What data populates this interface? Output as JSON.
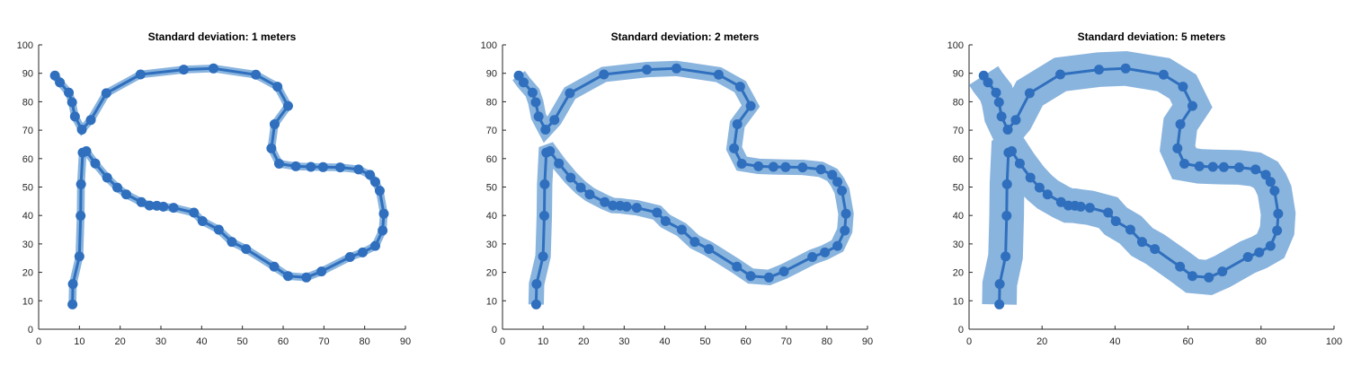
{
  "colors": {
    "line": "#2f6fbd",
    "band": "#89b4de",
    "axis": "#262626"
  },
  "chart_data": [
    {
      "type": "line",
      "title": "Standard deviation: 1 meters",
      "xlim": [
        0,
        90
      ],
      "ylim": [
        0,
        100
      ],
      "xticks": [
        "0",
        "10",
        "20",
        "30",
        "40",
        "50",
        "60",
        "70",
        "80",
        "90"
      ],
      "yticks": [
        "0",
        "10",
        "20",
        "30",
        "40",
        "50",
        "60",
        "70",
        "80",
        "90",
        "100"
      ],
      "band_width_m": 1,
      "x": [
        8.3,
        8.4,
        10.0,
        10.3,
        10.4,
        10.8,
        11.7,
        13.9,
        16.8,
        19.3,
        21.5,
        25.2,
        27.2,
        29.0,
        30.6,
        33.1,
        38.1,
        40.2,
        44.2,
        47.4,
        50.9,
        57.8,
        61.2,
        65.7,
        69.4,
        76.4,
        79.5,
        82.6,
        84.4,
        84.7,
        83.7,
        82.6,
        81.3,
        78.5,
        74.0,
        69.8,
        66.8,
        63.1,
        59.0,
        57.1,
        57.9,
        61.2,
        58.6,
        53.3,
        42.9,
        35.6,
        25.0,
        16.6,
        12.8,
        10.6,
        8.9,
        8.2,
        7.4,
        5.2,
        4.0
      ],
      "y": [
        8.7,
        15.9,
        25.6,
        39.9,
        51.0,
        62.1,
        62.6,
        58.3,
        53.3,
        49.8,
        47.4,
        44.7,
        43.5,
        43.4,
        43.1,
        42.7,
        41.0,
        38.0,
        35.0,
        30.7,
        28.2,
        22.0,
        18.7,
        18.2,
        20.3,
        25.4,
        27.0,
        29.3,
        34.7,
        40.6,
        48.7,
        51.8,
        54.3,
        56.2,
        56.9,
        57.0,
        57.1,
        57.3,
        58.2,
        63.6,
        72.1,
        78.5,
        85.3,
        89.5,
        91.7,
        91.3,
        89.6,
        83.0,
        73.6,
        70.2,
        74.8,
        79.8,
        83.2,
        86.8,
        89.2
      ]
    },
    {
      "type": "line",
      "title": "Standard deviation: 2 meters",
      "xlim": [
        0,
        90
      ],
      "ylim": [
        0,
        100
      ],
      "xticks": [
        "0",
        "10",
        "20",
        "30",
        "40",
        "50",
        "60",
        "70",
        "80",
        "90"
      ],
      "yticks": [
        "0",
        "10",
        "20",
        "30",
        "40",
        "50",
        "60",
        "70",
        "80",
        "90",
        "100"
      ],
      "band_width_m": 2,
      "x": [
        8.3,
        8.4,
        10.0,
        10.3,
        10.4,
        10.8,
        11.7,
        13.9,
        16.8,
        19.3,
        21.5,
        25.2,
        27.2,
        29.0,
        30.6,
        33.1,
        38.1,
        40.2,
        44.2,
        47.4,
        50.9,
        57.8,
        61.2,
        65.7,
        69.4,
        76.4,
        79.5,
        82.6,
        84.4,
        84.7,
        83.7,
        82.6,
        81.3,
        78.5,
        74.0,
        69.8,
        66.8,
        63.1,
        59.0,
        57.1,
        57.9,
        61.2,
        58.6,
        53.3,
        42.9,
        35.6,
        25.0,
        16.6,
        12.8,
        10.6,
        8.9,
        8.2,
        7.4,
        5.2,
        4.0
      ],
      "y": [
        8.7,
        15.9,
        25.6,
        39.9,
        51.0,
        62.1,
        62.6,
        58.3,
        53.3,
        49.8,
        47.4,
        44.7,
        43.5,
        43.4,
        43.1,
        42.7,
        41.0,
        38.0,
        35.0,
        30.7,
        28.2,
        22.0,
        18.7,
        18.2,
        20.3,
        25.4,
        27.0,
        29.3,
        34.7,
        40.6,
        48.7,
        51.8,
        54.3,
        56.2,
        56.9,
        57.0,
        57.1,
        57.3,
        58.2,
        63.6,
        72.1,
        78.5,
        85.3,
        89.5,
        91.7,
        91.3,
        89.6,
        83.0,
        73.6,
        70.2,
        74.8,
        79.8,
        83.2,
        86.8,
        89.2
      ]
    },
    {
      "type": "line",
      "title": "Standard deviation: 5 meters",
      "xlim": [
        0,
        100
      ],
      "ylim": [
        0,
        100
      ],
      "xticks": [
        "0",
        "20",
        "40",
        "60",
        "80",
        "100"
      ],
      "yticks": [
        "0",
        "10",
        "20",
        "30",
        "40",
        "50",
        "60",
        "70",
        "80",
        "90",
        "100"
      ],
      "band_width_m": 5,
      "x": [
        8.3,
        8.4,
        10.0,
        10.3,
        10.4,
        10.8,
        11.7,
        13.9,
        16.8,
        19.3,
        21.5,
        25.2,
        27.2,
        29.0,
        30.6,
        33.1,
        38.1,
        40.2,
        44.2,
        47.4,
        50.9,
        57.8,
        61.2,
        65.7,
        69.4,
        76.4,
        79.5,
        82.6,
        84.4,
        84.7,
        83.7,
        82.6,
        81.3,
        78.5,
        74.0,
        69.8,
        66.8,
        63.1,
        59.0,
        57.1,
        57.9,
        61.2,
        58.6,
        53.3,
        42.9,
        35.6,
        25.0,
        16.6,
        12.8,
        10.6,
        8.9,
        8.2,
        7.4,
        5.2,
        4.0
      ],
      "y": [
        8.7,
        15.9,
        25.6,
        39.9,
        51.0,
        62.1,
        62.6,
        58.3,
        53.3,
        49.8,
        47.4,
        44.7,
        43.5,
        43.4,
        43.1,
        42.7,
        41.0,
        38.0,
        35.0,
        30.7,
        28.2,
        22.0,
        18.7,
        18.2,
        20.3,
        25.4,
        27.0,
        29.3,
        34.7,
        40.6,
        48.7,
        51.8,
        54.3,
        56.2,
        56.9,
        57.0,
        57.1,
        57.3,
        58.2,
        63.6,
        72.1,
        78.5,
        85.3,
        89.5,
        91.7,
        91.3,
        89.6,
        83.0,
        73.6,
        70.2,
        74.8,
        79.8,
        83.2,
        86.8,
        89.2
      ]
    }
  ]
}
